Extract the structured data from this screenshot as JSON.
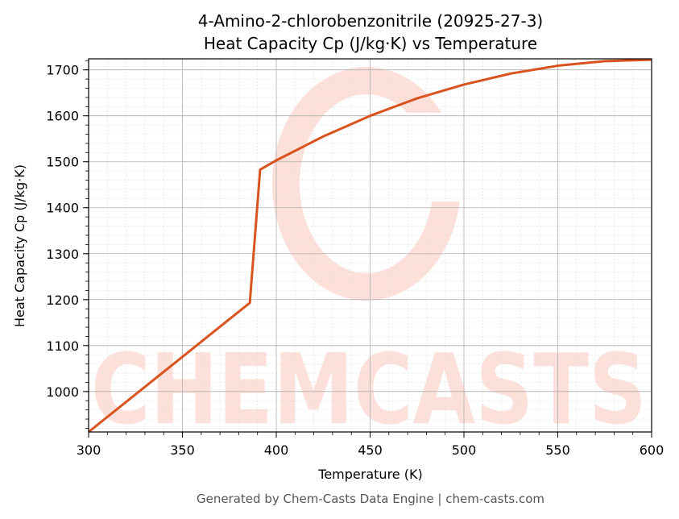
{
  "colors": {
    "line": "#d9531e",
    "watermark": "#fde0da",
    "grid_major": "#b0b0b0",
    "grid_minor": "#e0e0e0"
  },
  "watermark": {
    "text": "CHEMCASTS"
  },
  "footer": {
    "text": "Generated by Chem-Casts Data Engine | chem-casts.com"
  },
  "chart_data": {
    "type": "line",
    "title_line1": "4-Amino-2-chlorobenzonitrile (20925-27-3)",
    "title_line2": "Heat Capacity Cp (J/kg·K) vs Temperature",
    "xlabel": "Temperature (K)",
    "ylabel": "Heat Capacity Cp (J/kg·K)",
    "xlim": [
      300,
      600
    ],
    "ylim": [
      912,
      1724
    ],
    "xticks": [
      300,
      350,
      400,
      450,
      500,
      550,
      600
    ],
    "yticks": [
      1000,
      1100,
      1200,
      1300,
      1400,
      1500,
      1600,
      1700
    ],
    "grid": true,
    "series": [
      {
        "x": [
          300,
          385.9,
          391.4,
          400,
          425,
          450,
          475,
          500,
          525,
          550,
          575,
          600
        ],
        "y": [
          912,
          1193,
          1483,
          1503,
          1555,
          1600,
          1638,
          1668,
          1692,
          1709,
          1719,
          1722
        ]
      }
    ]
  }
}
